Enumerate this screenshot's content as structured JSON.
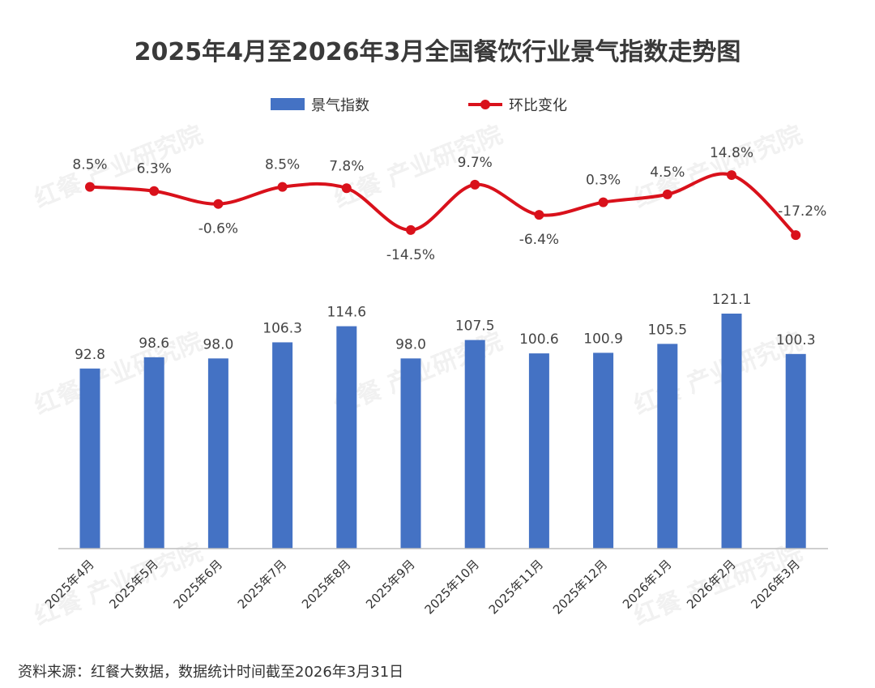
{
  "title": "2025年4月至2026年3月全国餐饮行业景气指数走势图",
  "source": "资料来源：红餐大数据，数据统计时间截至2026年3月31日",
  "watermark": "红餐 产业研究院",
  "colors": {
    "bar": "#4472c4",
    "line": "#d9111b",
    "text": "#333333",
    "axis": "#bfbfbf"
  },
  "chart_data": {
    "type": "bar",
    "title": "2025年4月至2026年3月全国餐饮行业景气指数走势图",
    "categories": [
      "2025年4月",
      "2025年5月",
      "2025年6月",
      "2025年7月",
      "2025年8月",
      "2025年9月",
      "2025年10月",
      "2025年11月",
      "2025年12月",
      "2026年1月",
      "2026年2月",
      "2026年3月"
    ],
    "series": [
      {
        "name": "景气指数",
        "type": "bar",
        "values": [
          92.8,
          98.6,
          98.0,
          106.3,
          114.6,
          98.0,
          107.5,
          100.6,
          100.9,
          105.5,
          121.1,
          100.3
        ],
        "labels": [
          "92.8",
          "98.6",
          "98.0",
          "106.3",
          "114.6",
          "98.0",
          "107.5",
          "100.6",
          "100.9",
          "105.5",
          "121.1",
          "100.3"
        ]
      },
      {
        "name": "环比变化",
        "type": "line",
        "values": [
          8.5,
          6.3,
          -0.6,
          8.5,
          7.8,
          -14.5,
          9.7,
          -6.4,
          0.3,
          4.5,
          14.8,
          -17.2
        ],
        "labels": [
          "8.5%",
          "6.3%",
          "-0.6%",
          "8.5%",
          "7.8%",
          "-14.5%",
          "9.7%",
          "-6.4%",
          "0.3%",
          "4.5%",
          "14.8%",
          "-17.2%"
        ]
      }
    ],
    "legend": "top-center",
    "grid": false
  }
}
